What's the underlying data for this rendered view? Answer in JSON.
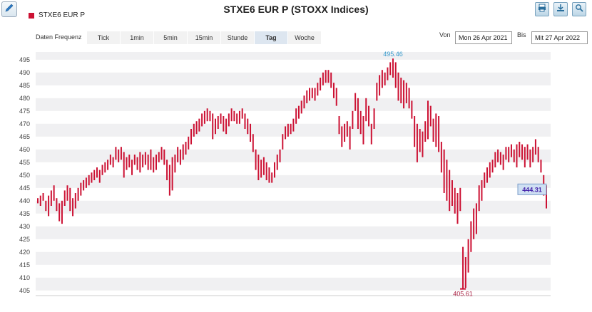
{
  "title": "STXE6 EUR P (STOXX Indices)",
  "legend": {
    "label": "STXE6 EUR P",
    "color": "#cc1133"
  },
  "icons": [
    "pencil-icon",
    "print-icon",
    "download-icon",
    "zoom-icon"
  ],
  "frequency": {
    "label": "Daten Frequenz",
    "options": [
      "Tick",
      "1min",
      "5min",
      "15min",
      "Stunde",
      "Tag",
      "Woche"
    ],
    "selected": "Tag"
  },
  "range": {
    "from_label": "Von",
    "from": "Mon 26 Apr 2021",
    "to_label": "Bis",
    "to": "Mit 27 Apr 2022"
  },
  "chart_data": {
    "type": "bar",
    "subtype": "ohlc-daily",
    "title": "STXE6 EUR P (STOXX Indices)",
    "series": [
      {
        "name": "STXE6 EUR P",
        "color": "#cc1133"
      }
    ],
    "ylim": [
      403,
      498
    ],
    "yticks": [
      405,
      410,
      415,
      420,
      425,
      430,
      435,
      440,
      445,
      450,
      455,
      460,
      465,
      470,
      475,
      480,
      485,
      490,
      495
    ],
    "grid": "horizontal-bands",
    "annotations": {
      "max": "495.46",
      "min": "405.61",
      "last": "444.31"
    },
    "bars": [
      [
        441,
        439
      ],
      [
        442,
        438
      ],
      [
        443,
        440
      ],
      [
        440,
        436
      ],
      [
        442,
        434
      ],
      [
        444,
        438
      ],
      [
        446,
        440
      ],
      [
        441,
        436
      ],
      [
        439,
        432
      ],
      [
        440,
        431
      ],
      [
        444,
        438
      ],
      [
        446,
        440
      ],
      [
        445,
        436
      ],
      [
        441,
        434
      ],
      [
        443,
        437
      ],
      [
        445,
        440
      ],
      [
        447,
        442
      ],
      [
        448,
        444
      ],
      [
        449,
        445
      ],
      [
        450,
        446
      ],
      [
        451,
        447
      ],
      [
        452,
        448
      ],
      [
        453,
        449
      ],
      [
        452,
        447
      ],
      [
        454,
        450
      ],
      [
        455,
        451
      ],
      [
        456,
        452
      ],
      [
        458,
        454
      ],
      [
        457,
        453
      ],
      [
        461,
        456
      ],
      [
        460,
        455
      ],
      [
        461,
        456
      ],
      [
        459,
        449
      ],
      [
        457,
        452
      ],
      [
        458,
        453
      ],
      [
        456,
        450
      ],
      [
        458,
        454
      ],
      [
        457,
        452
      ],
      [
        459,
        451
      ],
      [
        458,
        453
      ],
      [
        459,
        454
      ],
      [
        458,
        452
      ],
      [
        460,
        452
      ],
      [
        457,
        451
      ],
      [
        458,
        452
      ],
      [
        459,
        455
      ],
      [
        461,
        456
      ],
      [
        460,
        454
      ],
      [
        456,
        448
      ],
      [
        454,
        442
      ],
      [
        457,
        444
      ],
      [
        458,
        451
      ],
      [
        461,
        455
      ],
      [
        460,
        454
      ],
      [
        462,
        456
      ],
      [
        463,
        458
      ],
      [
        465,
        460
      ],
      [
        468,
        462
      ],
      [
        470,
        465
      ],
      [
        471,
        466
      ],
      [
        472,
        467
      ],
      [
        474,
        469
      ],
      [
        475,
        470
      ],
      [
        476,
        471
      ],
      [
        475,
        471
      ],
      [
        474,
        464
      ],
      [
        472,
        466
      ],
      [
        473,
        468
      ],
      [
        474,
        470
      ],
      [
        473,
        467
      ],
      [
        472,
        466
      ],
      [
        474,
        469
      ],
      [
        476,
        471
      ],
      [
        475,
        471
      ],
      [
        474,
        470
      ],
      [
        475,
        470
      ],
      [
        476,
        472
      ],
      [
        474,
        468
      ],
      [
        472,
        466
      ],
      [
        470,
        463
      ],
      [
        466,
        459
      ],
      [
        460,
        452
      ],
      [
        458,
        448
      ],
      [
        456,
        449
      ],
      [
        457,
        450
      ],
      [
        455,
        448
      ],
      [
        453,
        447
      ],
      [
        451,
        447
      ],
      [
        455,
        449
      ],
      [
        458,
        452
      ],
      [
        460,
        455
      ],
      [
        466,
        460
      ],
      [
        469,
        464
      ],
      [
        470,
        465
      ],
      [
        470,
        466
      ],
      [
        472,
        467
      ],
      [
        476,
        470
      ],
      [
        477,
        472
      ],
      [
        479,
        474
      ],
      [
        481,
        476
      ],
      [
        483,
        478
      ],
      [
        484,
        479
      ],
      [
        484,
        480
      ],
      [
        484,
        479
      ],
      [
        486,
        481
      ],
      [
        488,
        483
      ],
      [
        490,
        485
      ],
      [
        491,
        486
      ],
      [
        491,
        486
      ],
      [
        490,
        484
      ],
      [
        486,
        480
      ],
      [
        484,
        477
      ],
      [
        473,
        466
      ],
      [
        469,
        461
      ],
      [
        470,
        463
      ],
      [
        471,
        465
      ],
      [
        469,
        460
      ],
      [
        475,
        468
      ],
      [
        482,
        475
      ],
      [
        480,
        468
      ],
      [
        475,
        466
      ],
      [
        473,
        462
      ],
      [
        480,
        471
      ],
      [
        477,
        469
      ],
      [
        470,
        462
      ],
      [
        476,
        468
      ],
      [
        486,
        479
      ],
      [
        489,
        481
      ],
      [
        491,
        484
      ],
      [
        490,
        485
      ],
      [
        492,
        487
      ],
      [
        494,
        489
      ],
      [
        495.46,
        488
      ],
      [
        494,
        484
      ],
      [
        490,
        479
      ],
      [
        488,
        478
      ],
      [
        487,
        476
      ],
      [
        486,
        478
      ],
      [
        484,
        476
      ],
      [
        479,
        472
      ],
      [
        473,
        461
      ],
      [
        470,
        455
      ],
      [
        468,
        459
      ],
      [
        467,
        457
      ],
      [
        471,
        463
      ],
      [
        479,
        464
      ],
      [
        477,
        469
      ],
      [
        472,
        463
      ],
      [
        474,
        461
      ],
      [
        473,
        459
      ],
      [
        463,
        451
      ],
      [
        460,
        443
      ],
      [
        456,
        440
      ],
      [
        452,
        436
      ],
      [
        448,
        438
      ],
      [
        445,
        435
      ],
      [
        443,
        431
      ],
      [
        445,
        436
      ],
      [
        422,
        405.61
      ],
      [
        418,
        406
      ],
      [
        425,
        412
      ],
      [
        432,
        420
      ],
      [
        437,
        425
      ],
      [
        439,
        427
      ],
      [
        446,
        436
      ],
      [
        448,
        440
      ],
      [
        451,
        445
      ],
      [
        453,
        447
      ],
      [
        455,
        449
      ],
      [
        456,
        451
      ],
      [
        459,
        453
      ],
      [
        460,
        455
      ],
      [
        459,
        454
      ],
      [
        458,
        452
      ],
      [
        461,
        456
      ],
      [
        461,
        455
      ],
      [
        462,
        457
      ],
      [
        460,
        455
      ],
      [
        462,
        453
      ],
      [
        463,
        457
      ],
      [
        462,
        456
      ],
      [
        461,
        453
      ],
      [
        462,
        456
      ],
      [
        460,
        453
      ],
      [
        461,
        455
      ],
      [
        464,
        458
      ],
      [
        461,
        455
      ],
      [
        456,
        451
      ],
      [
        450,
        442
      ],
      [
        446,
        437
      ]
    ]
  }
}
